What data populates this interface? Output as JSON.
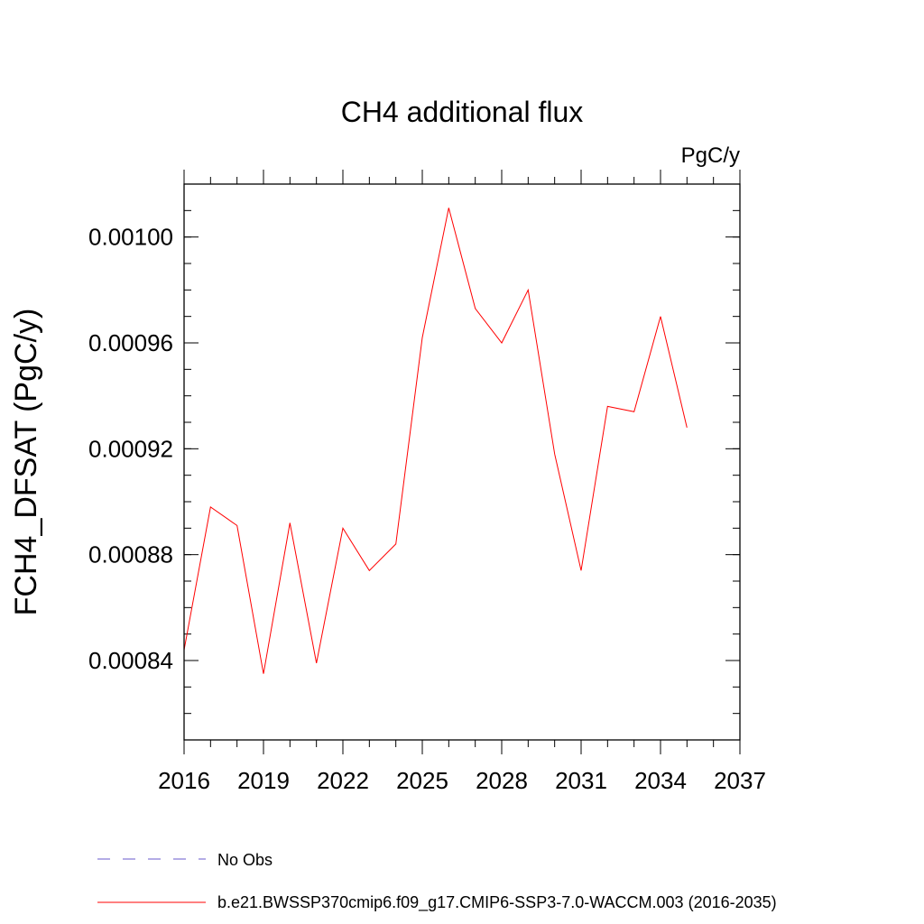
{
  "chart_data": {
    "type": "line",
    "title": "CH4 additional flux",
    "units_label": "PgC/y",
    "ylabel": "FCH4_DFSAT  (PgC/y)",
    "xlabel": "",
    "xlim": [
      2016,
      2037
    ],
    "ylim": [
      0.00081,
      0.00102
    ],
    "x_ticks": [
      2016,
      2019,
      2022,
      2025,
      2028,
      2031,
      2034,
      2037
    ],
    "x_tick_labels": [
      "2016",
      "2019",
      "2022",
      "2025",
      "2028",
      "2031",
      "2034",
      "2037"
    ],
    "y_ticks": [
      0.00084,
      0.00088,
      0.00092,
      0.00096,
      0.001
    ],
    "y_tick_labels": [
      "0.00084",
      "0.00088",
      "0.00092",
      "0.00096",
      "0.00100"
    ],
    "y_minor_step": 1e-05,
    "x_minor_step": 1,
    "grid": false,
    "series": [
      {
        "name": "b.e21.BWSSP370cmip6.f09_g17.CMIP6-SSP3-7.0-WACCM.003 (2016-2035)",
        "color": "#ff0000",
        "x": [
          2016,
          2017,
          2018,
          2019,
          2020,
          2021,
          2022,
          2023,
          2024,
          2025,
          2026,
          2027,
          2028,
          2029,
          2030,
          2031,
          2032,
          2033,
          2034,
          2035
        ],
        "values": [
          0.000844,
          0.000898,
          0.000891,
          0.000835,
          0.000892,
          0.000839,
          0.00089,
          0.000874,
          0.000884,
          0.000962,
          0.001011,
          0.000973,
          0.00096,
          0.00098,
          0.000918,
          0.000874,
          0.000936,
          0.000934,
          0.00097,
          0.000928
        ]
      }
    ],
    "legend": [
      {
        "label": "No Obs",
        "color": "#6a5acd",
        "style": "dashed"
      },
      {
        "label": "b.e21.BWSSP370cmip6.f09_g17.CMIP6-SSP3-7.0-WACCM.003 (2016-2035)",
        "color": "#ff0000",
        "style": "solid"
      }
    ],
    "legend_position": "bottom"
  }
}
